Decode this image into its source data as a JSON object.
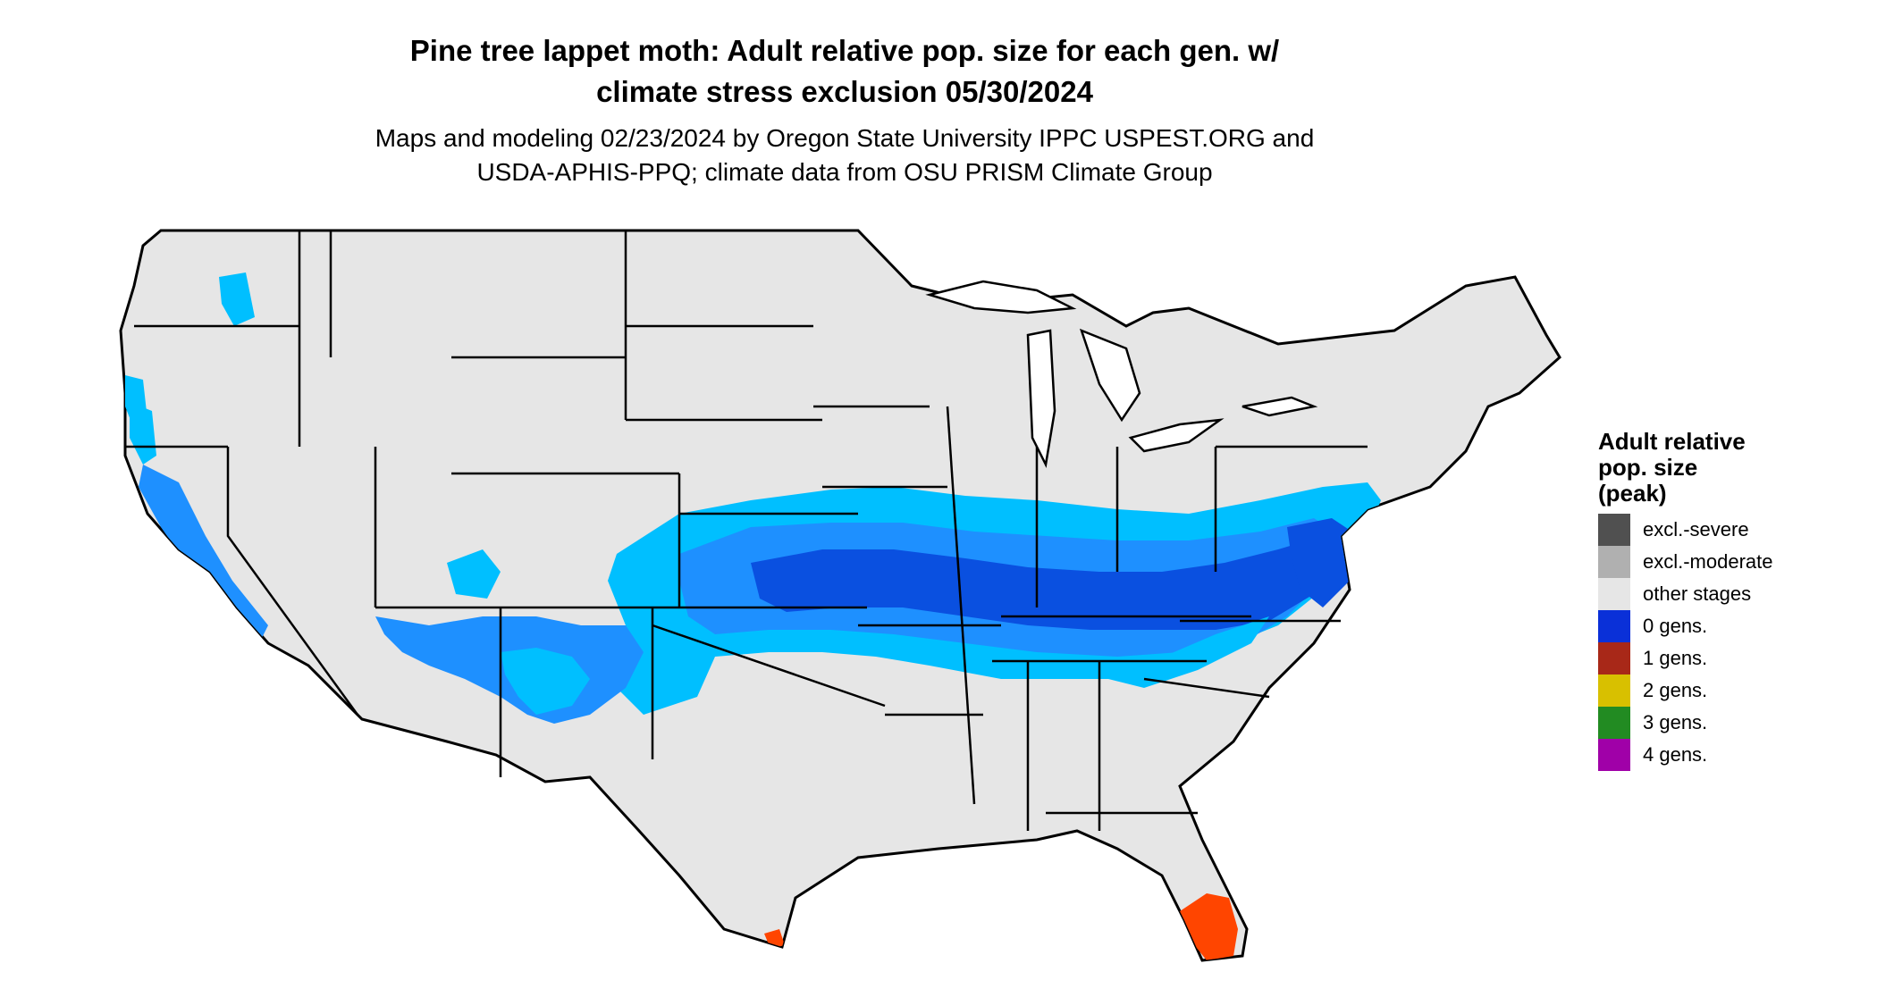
{
  "title": {
    "line1": "Pine tree lappet moth: Adult relative pop. size for each gen. w/",
    "line2": "climate stress exclusion 05/30/2024"
  },
  "subtitle": {
    "line1": "Maps and modeling 02/23/2024 by Oregon State University IPPC USPEST.ORG and",
    "line2": "USDA-APHIS-PPQ; climate data from OSU PRISM Climate Group"
  },
  "legend": {
    "title_line1": "Adult relative",
    "title_line2": "pop. size",
    "title_line3": "(peak)",
    "items": [
      {
        "label": "excl.-severe",
        "color": "#505050"
      },
      {
        "label": "excl.-moderate",
        "color": "#b0b0b0"
      },
      {
        "label": "other stages",
        "color": "#e6e6e6"
      },
      {
        "label": "0 gens.",
        "color": "#0a30d8"
      },
      {
        "label": "1 gens.",
        "color": "#a82818"
      },
      {
        "label": "2 gens.",
        "color": "#d8c000"
      },
      {
        "label": "3 gens.",
        "color": "#228b22"
      },
      {
        "label": "4 gens.",
        "color": "#a000a8"
      }
    ]
  },
  "map_colors": {
    "land": "#e6e6e6",
    "border": "#000000",
    "light_blue": "#00bfff",
    "mid_blue": "#1e90ff",
    "dark_blue": "#0a50e0",
    "orange_red": "#ff4500"
  }
}
